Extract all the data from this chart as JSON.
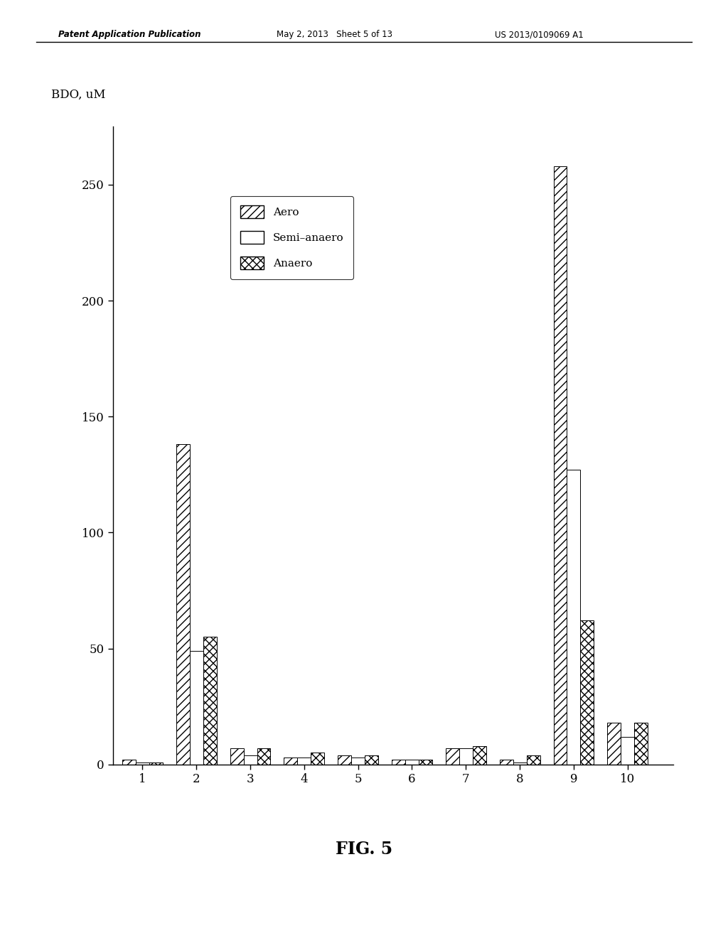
{
  "ylabel": "BDO, uM",
  "categories": [
    1,
    2,
    3,
    4,
    5,
    6,
    7,
    8,
    9,
    10
  ],
  "aero": [
    2,
    138,
    7,
    3,
    4,
    2,
    7,
    2,
    258,
    18
  ],
  "semi_anaero": [
    1,
    49,
    4,
    3,
    3,
    2,
    7,
    1,
    127,
    12
  ],
  "anaero": [
    1,
    55,
    7,
    5,
    4,
    2,
    8,
    4,
    62,
    18
  ],
  "ylim": [
    0,
    275
  ],
  "yticks": [
    0,
    50,
    100,
    150,
    200,
    250
  ],
  "bar_width": 0.25,
  "legend_labels": [
    "Aero",
    "Semi–anaero",
    "Anaero"
  ],
  "header_left": "Patent Application Publication",
  "header_mid": "May 2, 2013   Sheet 5 of 13",
  "header_right": "US 2013/0109069 A1",
  "background_color": "#ffffff",
  "fig_label": "FIG. 5",
  "hatch_aero": "///",
  "hatch_semi": "",
  "hatch_anaero": "xxx"
}
